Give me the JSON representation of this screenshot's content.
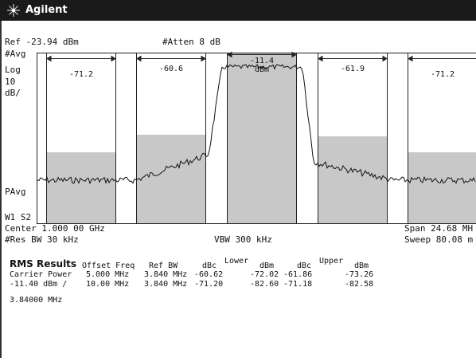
{
  "header": {
    "brand": "Agilent",
    "icon": "agilent-spark-icon"
  },
  "settings": {
    "ref": "Ref -23.94 dBm",
    "atten": "#Atten 8 dB",
    "avg": "#Avg",
    "log": "Log",
    "scale_value": "10",
    "scale_unit": "dB/",
    "pavg": "PAvg",
    "w1s2": "W1  S2",
    "center": "Center 1.000 00 GHz",
    "span": "Span 24.68 MH",
    "res_bw": "#Res BW 30 kHz",
    "vbw": "VBW 300 kHz",
    "sweep": "Sweep 80.08 m"
  },
  "channel_labels": {
    "lower_outer": "-71.2",
    "lower_inner": "-60.6",
    "carrier_line1": "-11.4",
    "carrier_line2": "dBm",
    "upper_inner": "-61.9",
    "upper_outer": "-71.2"
  },
  "results": {
    "title": "RMS Results",
    "col_offset": "Offset Freq",
    "col_refbw": "Ref BW",
    "col_dbc1": "dBc",
    "col_lower": "Lower",
    "col_dbm1": "dBm",
    "col_dbc2": "dBc",
    "col_upper": "Upper",
    "col_dbm2": "dBm",
    "carrier_label": "Carrier Power",
    "carrier_value": "-11.40 dBm /",
    "carrier_bw": "3.84000 MHz",
    "rows": [
      {
        "offset": "5.000 MHz",
        "refbw": "3.840 MHz",
        "lower_dbc": "-60.62",
        "lower_dbm": "-72.02",
        "upper_dbc": "-61.86",
        "upper_dbm": "-73.26"
      },
      {
        "offset": "10.00 MHz",
        "refbw": "3.840 MHz",
        "lower_dbc": "-71.20",
        "lower_dbm": "-82.60",
        "upper_dbc": "-71.18",
        "upper_dbm": "-82.58"
      }
    ]
  },
  "colors": {
    "titlebar": "#1a1a1a",
    "channel_fill": "#c8c8c8",
    "trace": "#111111"
  }
}
